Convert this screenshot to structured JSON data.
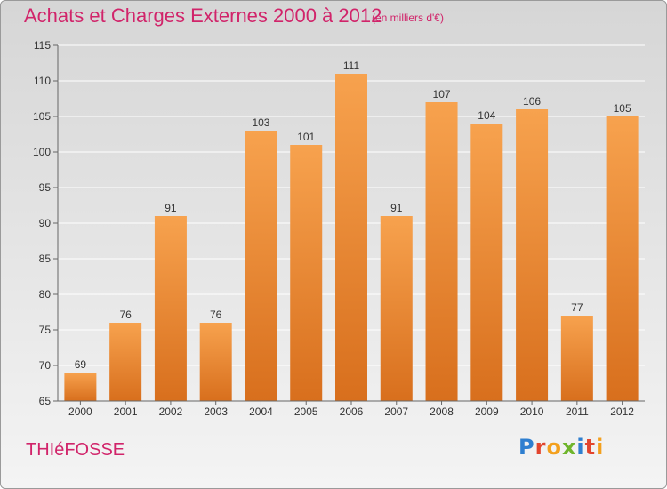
{
  "header": {
    "title": "Achats et Charges Externes 2000 à 2012",
    "unit": "(en milliers d'€)"
  },
  "footer": {
    "place": "THIéFOSSE",
    "brand": "Proxiti"
  },
  "colors": {
    "title": "#d1246a",
    "bar_light": "#f7a24e",
    "bar_dark": "#d86f1d"
  },
  "chart_data": {
    "type": "bar",
    "categories": [
      "2000",
      "2001",
      "2002",
      "2003",
      "2004",
      "2005",
      "2006",
      "2007",
      "2008",
      "2009",
      "2010",
      "2011",
      "2012"
    ],
    "values": [
      69,
      76,
      91,
      76,
      103,
      101,
      111,
      91,
      107,
      104,
      106,
      77,
      105
    ],
    "ylim": [
      65,
      115
    ],
    "yticks": [
      65,
      70,
      75,
      80,
      85,
      90,
      95,
      100,
      105,
      110,
      115
    ],
    "grid": true,
    "data_labels": true
  }
}
